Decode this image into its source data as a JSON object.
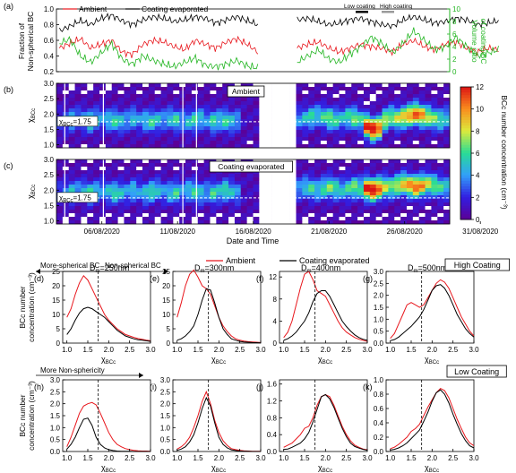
{
  "chart_data": [
    {
      "panel": "(a)",
      "type": "line",
      "legend": [
        "Ambient",
        "Coating evaporated"
      ],
      "ylabel_left": "Fraction of Non-spherical BC",
      "ylabel_right": "Volume ratio of coating/BC",
      "y_ticks_left": [
        "0.2",
        "0.4",
        "0.6",
        "0.8",
        "1.0"
      ],
      "y_ticks_right": [
        "0",
        "2",
        "4",
        "6",
        "8",
        "10"
      ],
      "ylim_left": [
        0.2,
        1.0
      ],
      "ylim_right": [
        0,
        10
      ],
      "period_labels": [
        "Low coating",
        "High coating"
      ],
      "gap": [
        "2020-08-16",
        "2020-08-19"
      ],
      "series": [
        {
          "name": "Ambient",
          "color": "#e8161c",
          "axis": "left",
          "approx": [
            0.5,
            0.56,
            0.62,
            0.5,
            0.55,
            0.6,
            0.45,
            0.42,
            0.55,
            0.6,
            0.58,
            0.52,
            0.48,
            0.6,
            0.55,
            0.5,
            0.58,
            0.62,
            0.55,
            0.45,
            0.5,
            0.55,
            0.58,
            0.5,
            0.45,
            0.5,
            0.55,
            0.52,
            0.5,
            0.45,
            0.55,
            0.6,
            0.52,
            0.48,
            0.55,
            0.58,
            0.5,
            0.45,
            0.5,
            0.48
          ]
        },
        {
          "name": "Coating evaporated",
          "color": "#000000",
          "axis": "left",
          "approx": [
            0.72,
            0.78,
            0.85,
            0.8,
            0.88,
            0.92,
            0.85,
            0.8,
            0.86,
            0.9,
            0.88,
            0.84,
            0.86,
            0.9,
            0.88,
            0.82,
            0.86,
            0.9,
            0.85,
            0.8,
            0.86,
            0.88,
            0.84,
            0.8,
            0.82,
            0.86,
            0.88,
            0.84,
            0.8,
            0.78,
            0.86,
            0.9,
            0.86,
            0.82,
            0.84,
            0.88,
            0.86,
            0.8,
            0.82,
            0.85
          ]
        },
        {
          "name": "Volume ratio of coating/BC",
          "color": "#22b521",
          "axis": "right",
          "approx": [
            4.5,
            5.2,
            2.5,
            1.5,
            3.0,
            4.5,
            2.0,
            1.2,
            2.5,
            1.8,
            1.2,
            0.8,
            1.5,
            2.2,
            1.0,
            0.8,
            1.2,
            1.8,
            0.9,
            0.6,
            1.5,
            2.5,
            3.5,
            2.0,
            1.5,
            2.8,
            4.0,
            5.5,
            4.5,
            3.0,
            4.5,
            6.5,
            5.0,
            3.5,
            4.0,
            5.5,
            4.0,
            2.5,
            3.0,
            3.5
          ]
        }
      ]
    },
    {
      "panel": "(b)",
      "type": "heatmap",
      "tag": "Ambient",
      "ylabel": "χ",
      "ylabel_sub": "BCc",
      "y_ticks": [
        "1.0",
        "1.5",
        "2.0",
        "2.5",
        "3.0"
      ],
      "ylim": [
        0.9,
        3.0
      ],
      "annotation": "χ",
      "annotation_sub": "BCc",
      "annotation_value": "=1.75",
      "threshold": 1.75,
      "peak_center_approx": [
        1.75,
        1.78,
        1.8,
        1.85,
        1.8,
        1.75,
        1.82,
        1.85,
        1.8,
        1.78,
        1.75,
        1.8,
        1.85,
        1.8,
        1.78,
        1.75,
        1.8,
        1.82,
        1.85,
        1.8,
        1.78,
        1.75,
        1.8,
        1.85,
        1.8,
        1.75,
        1.8,
        1.78,
        1.75,
        1.8,
        1.85,
        1.8,
        1.78,
        1.8,
        1.85,
        1.8,
        1.78,
        1.75,
        1.8,
        1.82,
        1.85,
        1.9,
        1.95,
        1.9,
        1.85,
        1.8,
        1.85,
        1.9,
        1.85,
        1.8,
        1.6,
        1.5,
        1.55,
        1.8,
        1.9,
        1.85,
        1.9,
        1.95,
        2.0,
        1.95,
        1.9,
        1.85,
        1.8,
        1.85
      ],
      "intensity_approx": [
        2,
        3,
        4,
        3,
        4,
        5,
        4,
        3,
        4,
        5,
        4,
        3,
        4,
        3,
        4,
        5,
        4,
        3,
        4,
        5,
        3,
        4,
        5,
        4,
        3,
        5,
        4,
        5,
        4,
        3,
        0,
        0,
        0,
        0,
        2,
        3,
        4,
        5,
        4,
        3,
        4,
        5,
        4,
        5,
        6,
        5,
        4,
        5,
        6,
        5,
        11,
        12,
        10,
        7,
        6,
        7,
        8,
        9,
        10,
        9,
        7,
        6,
        5,
        4
      ]
    },
    {
      "panel": "(c)",
      "type": "heatmap",
      "tag": "Coating evaporated",
      "ylabel": "χ",
      "ylabel_sub": "BCc",
      "y_ticks": [
        "1.0",
        "1.5",
        "2.0",
        "2.5",
        "3.0"
      ],
      "ylim": [
        0.9,
        3.0
      ],
      "annotation": "χ",
      "annotation_sub": "BCc",
      "annotation_value": "=1.75",
      "threshold": 1.75,
      "peak_center_approx": [
        1.9,
        1.92,
        1.95,
        2.0,
        1.95,
        1.9,
        1.95,
        2.0,
        1.95,
        1.9,
        1.92,
        1.95,
        2.0,
        1.95,
        1.9,
        1.95,
        2.0,
        1.95,
        1.9,
        1.92,
        1.95,
        2.0,
        1.95,
        1.9,
        1.95,
        1.9,
        1.95,
        2.0,
        1.95,
        1.9,
        1.95,
        2.0,
        1.95,
        1.9,
        2.0,
        2.05,
        2.0,
        1.95,
        2.0,
        2.05,
        2.1,
        2.05,
        2.0,
        2.05,
        2.1,
        2.05,
        2.0,
        2.05,
        2.1,
        2.05,
        2.05,
        2.0,
        2.05,
        2.1,
        2.1,
        2.15,
        2.2,
        2.15,
        2.1,
        2.15,
        2.2,
        2.15,
        2.1,
        2.1
      ],
      "intensity_approx": [
        2,
        3,
        4,
        3,
        4,
        5,
        4,
        3,
        4,
        5,
        4,
        3,
        4,
        3,
        4,
        5,
        4,
        3,
        4,
        5,
        3,
        4,
        5,
        4,
        3,
        5,
        4,
        5,
        4,
        3,
        0,
        0,
        0,
        0,
        2,
        3,
        4,
        5,
        4,
        3,
        4,
        5,
        4,
        5,
        6,
        5,
        4,
        5,
        6,
        5,
        11,
        12,
        10,
        7,
        6,
        7,
        8,
        9,
        10,
        9,
        7,
        6,
        5,
        4
      ]
    },
    {
      "panel": "colorbar",
      "type": "heatmap",
      "label": "BCc number concentration (cm⁻³)",
      "ticks": [
        "0",
        "2",
        "4",
        "6",
        "8",
        "10",
        "12"
      ],
      "range": [
        0,
        12
      ]
    },
    {
      "panel": "time-axis",
      "type": "table",
      "xlabel": "Date and Time",
      "date_ticks": [
        "06/08/2020",
        "11/08/2020",
        "16/08/2020",
        "21/08/2020",
        "26/08/2020",
        "31/08/2020"
      ]
    },
    {
      "panel": "size-resolved",
      "type": "line",
      "legend": [
        "Ambient",
        "Coating evaporated"
      ],
      "group_labels": [
        "High Coating",
        "Low Coating"
      ],
      "arrow_left": "More-spherical BC",
      "arrow_right": "Non-spherical BC",
      "arrow_bottom": "More Non-sphericity",
      "ylabel_row1": "BCc number concentration (cm⁻³)",
      "ylabel_row2": "BCc number concentration (cm⁻³)",
      "xlabel": "χ",
      "xlabel_sub": "BCc",
      "x_ticks": [
        "1.0",
        "1.5",
        "2.0",
        "2.5",
        "3.0"
      ],
      "xlim": [
        0.9,
        3.0
      ],
      "x": [
        1.0,
        1.1,
        1.2,
        1.3,
        1.4,
        1.5,
        1.6,
        1.7,
        1.8,
        1.9,
        2.0,
        2.1,
        2.2,
        2.3,
        2.4,
        2.5,
        2.6,
        2.7,
        2.8,
        2.9,
        3.0
      ],
      "panels": [
        {
          "label": "(d)",
          "dm": "D",
          "dm_sub": "m",
          "dm_value": "=250nm",
          "ylim": [
            0,
            25
          ],
          "y_ticks": [
            "0",
            "5",
            "10",
            "15",
            "20",
            "25"
          ],
          "ambient": [
            9,
            12,
            17,
            21,
            23.5,
            22,
            19,
            16,
            13,
            10,
            8,
            6.5,
            5,
            4,
            3,
            2.5,
            2,
            1.6,
            1.3,
            1,
            0.8
          ],
          "evaporated": [
            3,
            5,
            8,
            10.5,
            12,
            12.5,
            12,
            11,
            10,
            9,
            7.5,
            6,
            4.5,
            3.5,
            2.5,
            2,
            1.5,
            1.2,
            1,
            0.8,
            0.6
          ]
        },
        {
          "label": "(e)",
          "dm": "D",
          "dm_sub": "m",
          "dm_value": "=300nm",
          "ylim": [
            0,
            25
          ],
          "y_ticks": [
            "0",
            "5",
            "10",
            "15",
            "20",
            "25"
          ],
          "ambient": [
            9,
            14,
            20,
            24,
            25.5,
            23,
            20,
            19,
            17,
            13,
            9,
            6,
            4,
            2.5,
            1.5,
            1,
            0.7,
            0.5,
            0.4,
            0.3,
            0.2
          ],
          "evaporated": [
            1,
            1.5,
            2.5,
            4,
            6,
            10,
            15,
            19,
            18.5,
            14,
            9,
            5,
            3,
            1.5,
            1,
            0.6,
            0.4,
            0.3,
            0.2,
            0.15,
            0.1
          ]
        },
        {
          "label": "(f)",
          "dm": "D",
          "dm_sub": "m",
          "dm_value": "=400nm",
          "ylim": [
            0,
            13
          ],
          "y_ticks": [
            "0",
            "4",
            "8",
            "12"
          ],
          "ambient": [
            1,
            2,
            4,
            7,
            10,
            12.5,
            13,
            11.5,
            9.5,
            9,
            8.5,
            7,
            5.5,
            4,
            2.8,
            2,
            1.5,
            1,
            0.7,
            0.5,
            0.3
          ],
          "evaporated": [
            0.5,
            0.8,
            1.3,
            2,
            3,
            4,
            5.5,
            7.5,
            9,
            9.5,
            9.5,
            8.5,
            7,
            5.5,
            4,
            3,
            2.2,
            1.5,
            1,
            0.7,
            0.5
          ]
        },
        {
          "label": "(g)",
          "dm": "D",
          "dm_sub": "m",
          "dm_value": "=500nm",
          "ylim": [
            0,
            3
          ],
          "y_ticks": [
            "0.0",
            "0.5",
            "1.0",
            "1.5",
            "2.0",
            "2.5",
            "3.0"
          ],
          "ambient": [
            0.2,
            0.4,
            0.8,
            1.2,
            1.6,
            1.7,
            1.6,
            1.5,
            1.6,
            1.9,
            2.2,
            2.5,
            2.65,
            2.55,
            2.3,
            1.9,
            1.5,
            1.1,
            0.8,
            0.5,
            0.3
          ],
          "evaporated": [
            0.1,
            0.15,
            0.25,
            0.4,
            0.55,
            0.7,
            0.9,
            1.1,
            1.4,
            1.8,
            2.2,
            2.4,
            2.45,
            2.3,
            2.0,
            1.6,
            1.2,
            0.9,
            0.6,
            0.4,
            0.25
          ]
        },
        {
          "label": "(h)",
          "ylim": [
            0,
            3
          ],
          "y_ticks": [
            "0.0",
            "0.5",
            "1.0",
            "1.5",
            "2.0",
            "2.5",
            "3.0"
          ],
          "ambient": [
            0.2,
            0.6,
            1.1,
            1.6,
            1.9,
            2.0,
            2.05,
            1.95,
            1.6,
            1.2,
            0.8,
            0.5,
            0.3,
            0.2,
            0.12,
            0.08,
            0.05,
            0.03,
            0.02,
            0.02,
            0.01
          ],
          "evaporated": [
            0.1,
            0.3,
            0.6,
            1.0,
            1.35,
            1.4,
            1.1,
            0.6,
            0.3,
            0.15,
            0.08,
            0.04,
            0.02,
            0.01,
            0.01,
            0.01,
            0.0,
            0.0,
            0.0,
            0.0,
            0.0
          ]
        },
        {
          "label": "(i)",
          "ylim": [
            0,
            3
          ],
          "y_ticks": [
            "0.0",
            "0.5",
            "1.0",
            "1.5",
            "2.0",
            "2.5",
            "3.0"
          ],
          "ambient": [
            0.1,
            0.2,
            0.35,
            0.6,
            1.0,
            1.5,
            2.1,
            2.5,
            2.0,
            1.3,
            0.8,
            0.45,
            0.25,
            0.12,
            0.08,
            0.05,
            0.03,
            0.02,
            0.01,
            0.01,
            0.01
          ],
          "evaporated": [
            0.05,
            0.1,
            0.2,
            0.4,
            0.7,
            1.2,
            1.8,
            2.25,
            1.9,
            1.2,
            0.6,
            0.3,
            0.15,
            0.07,
            0.04,
            0.02,
            0.01,
            0.01,
            0.0,
            0.0,
            0.0
          ]
        },
        {
          "label": "(j)",
          "ylim": [
            0,
            1.7
          ],
          "y_ticks": [
            "0.0",
            "0.4",
            "0.8",
            "1.2",
            "1.6"
          ],
          "ambient": [
            0.1,
            0.15,
            0.2,
            0.3,
            0.4,
            0.55,
            0.6,
            0.8,
            1.1,
            1.3,
            1.35,
            1.3,
            1.1,
            0.85,
            0.6,
            0.4,
            0.25,
            0.15,
            0.1,
            0.06,
            0.04
          ],
          "evaporated": [
            0.05,
            0.06,
            0.1,
            0.15,
            0.2,
            0.3,
            0.45,
            0.7,
            1.0,
            1.3,
            1.35,
            1.25,
            1.05,
            0.8,
            0.55,
            0.35,
            0.2,
            0.12,
            0.08,
            0.05,
            0.03
          ]
        },
        {
          "label": "(k)",
          "ylim": [
            0,
            1.0
          ],
          "y_ticks": [
            "0.0",
            "0.2",
            "0.4",
            "0.6",
            "0.8",
            "1.0"
          ],
          "ambient": [
            0.04,
            0.06,
            0.1,
            0.15,
            0.2,
            0.28,
            0.32,
            0.38,
            0.5,
            0.62,
            0.72,
            0.82,
            0.88,
            0.85,
            0.75,
            0.6,
            0.45,
            0.32,
            0.2,
            0.12,
            0.08
          ],
          "evaporated": [
            0.02,
            0.03,
            0.05,
            0.08,
            0.12,
            0.18,
            0.24,
            0.3,
            0.42,
            0.55,
            0.7,
            0.82,
            0.86,
            0.8,
            0.68,
            0.52,
            0.38,
            0.25,
            0.15,
            0.08,
            0.05
          ]
        }
      ]
    }
  ]
}
